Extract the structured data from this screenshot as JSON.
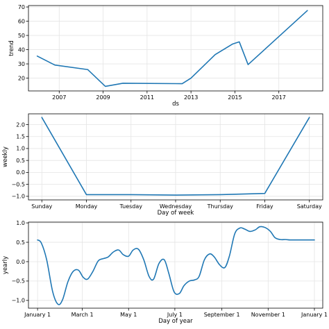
{
  "colors": {
    "line": "#1f77b4",
    "grid": "#e4e4e4"
  },
  "chart_data": [
    {
      "type": "line",
      "name": "trend",
      "xlabel": "ds",
      "ylabel": "trend",
      "grid": true,
      "xlim": [
        2005.6,
        2019.0
      ],
      "ylim": [
        11,
        71
      ],
      "xticks": [
        2007,
        2009,
        2011,
        2013,
        2015,
        2017
      ],
      "xtick_labels": [
        "2007",
        "2009",
        "2011",
        "2013",
        "2015",
        "2017"
      ],
      "yticks": [
        20,
        30,
        40,
        50,
        60,
        70
      ],
      "ytick_labels": [
        "20",
        "30",
        "40",
        "50",
        "60",
        "70"
      ],
      "x": [
        2006.0,
        2006.8,
        2008.3,
        2009.1,
        2009.9,
        2012.6,
        2013.0,
        2014.1,
        2014.9,
        2015.2,
        2015.6,
        2018.3
      ],
      "y": [
        35.5,
        29.2,
        26.0,
        14.2,
        16.4,
        16.1,
        20.0,
        36.5,
        44.0,
        45.5,
        29.5,
        67.5
      ]
    },
    {
      "type": "line",
      "name": "weekly",
      "xlabel": "Day of week",
      "ylabel": "weekly",
      "grid": true,
      "xlim": [
        -0.3,
        6.3
      ],
      "ylim": [
        -1.15,
        2.45
      ],
      "xticks": [
        0,
        1,
        2,
        3,
        4,
        5,
        6
      ],
      "xtick_labels": [
        "Sunday",
        "Monday",
        "Tuesday",
        "Wednesday",
        "Thursday",
        "Friday",
        "Saturday"
      ],
      "yticks": [
        -1.0,
        -0.5,
        0.0,
        0.5,
        1.0,
        1.5,
        2.0
      ],
      "ytick_labels": [
        "−1.0",
        "−0.5",
        "0.0",
        "0.5",
        "1.0",
        "1.5",
        "2.0"
      ],
      "x": [
        0,
        1,
        2,
        3,
        4,
        5,
        6
      ],
      "y": [
        2.3,
        -0.93,
        -0.93,
        -0.95,
        -0.93,
        -0.88,
        2.3
      ]
    },
    {
      "type": "line",
      "name": "yearly",
      "xlabel": "Day of year",
      "ylabel": "yearly",
      "grid": true,
      "xlim": [
        -12,
        376
      ],
      "ylim": [
        -1.2,
        1.02
      ],
      "xticks": [
        0,
        59,
        120,
        181,
        243,
        304,
        365
      ],
      "xtick_labels": [
        "January 1",
        "March 1",
        "May 1",
        "July 1",
        "September 1",
        "November 1",
        "January 1"
      ],
      "yticks": [
        -1.0,
        -0.5,
        0.0,
        0.5,
        1.0
      ],
      "ytick_labels": [
        "−1.0",
        "−0.5",
        "0.0",
        "0.5",
        "1.0"
      ],
      "x": [
        0,
        5,
        12,
        20,
        27,
        33,
        40,
        47,
        54,
        60,
        66,
        73,
        80,
        87,
        93,
        100,
        107,
        113,
        120,
        126,
        133,
        140,
        147,
        153,
        160,
        167,
        173,
        180,
        187,
        193,
        200,
        207,
        213,
        220,
        227,
        233,
        240,
        247,
        253,
        260,
        267,
        273,
        280,
        287,
        293,
        300,
        307,
        313,
        320,
        327,
        333,
        340,
        347,
        353,
        360,
        365
      ],
      "y": [
        0.56,
        0.48,
        0.05,
        -0.78,
        -1.1,
        -0.98,
        -0.52,
        -0.25,
        -0.22,
        -0.4,
        -0.45,
        -0.25,
        0.02,
        0.08,
        0.12,
        0.25,
        0.3,
        0.18,
        0.14,
        0.3,
        0.32,
        0.05,
        -0.38,
        -0.45,
        -0.05,
        0.05,
        -0.3,
        -0.78,
        -0.82,
        -0.62,
        -0.5,
        -0.47,
        -0.38,
        0.05,
        0.2,
        0.12,
        -0.08,
        -0.15,
        0.15,
        0.72,
        0.87,
        0.84,
        0.78,
        0.82,
        0.9,
        0.88,
        0.78,
        0.62,
        0.57,
        0.57,
        0.56,
        0.56,
        0.56,
        0.56,
        0.56,
        0.56
      ]
    }
  ]
}
